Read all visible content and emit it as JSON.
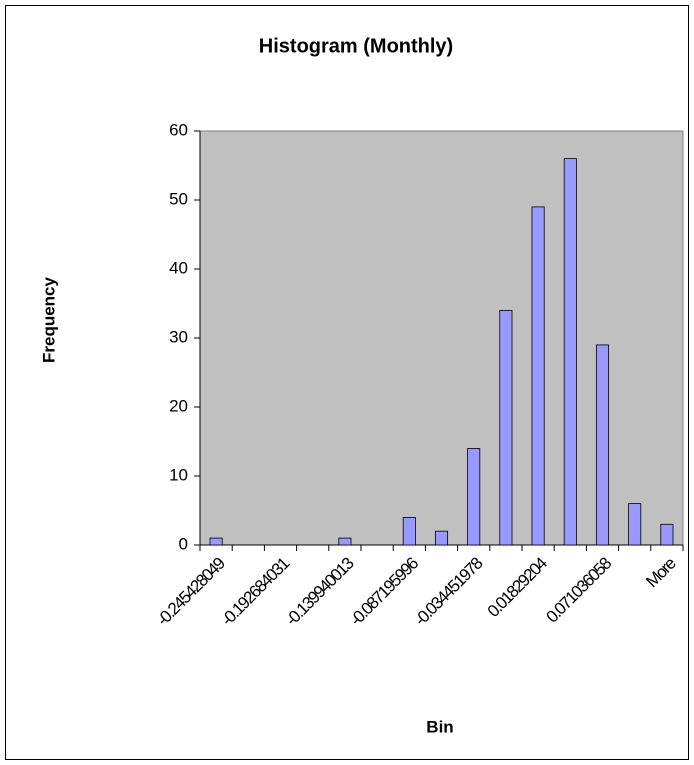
{
  "chart_data": {
    "type": "bar",
    "title": "Histogram (Monthly)",
    "x_label": "Bin",
    "y_label": "Frequency",
    "categories": [
      "-0.245428049",
      null,
      "-0.192684031",
      null,
      "-0.139940013",
      null,
      "-0.087195996",
      null,
      "-0.034451978",
      null,
      "0.01829204",
      null,
      "0.071036058",
      null,
      "More"
    ],
    "values": [
      1,
      0,
      0,
      0,
      1,
      0,
      4,
      2,
      14,
      34,
      49,
      56,
      29,
      6,
      3
    ],
    "color": "#9999ff",
    "ylim": [
      0,
      60
    ],
    "yticks": [
      0,
      10,
      20,
      30,
      40,
      50,
      60
    ],
    "grid": false
  }
}
